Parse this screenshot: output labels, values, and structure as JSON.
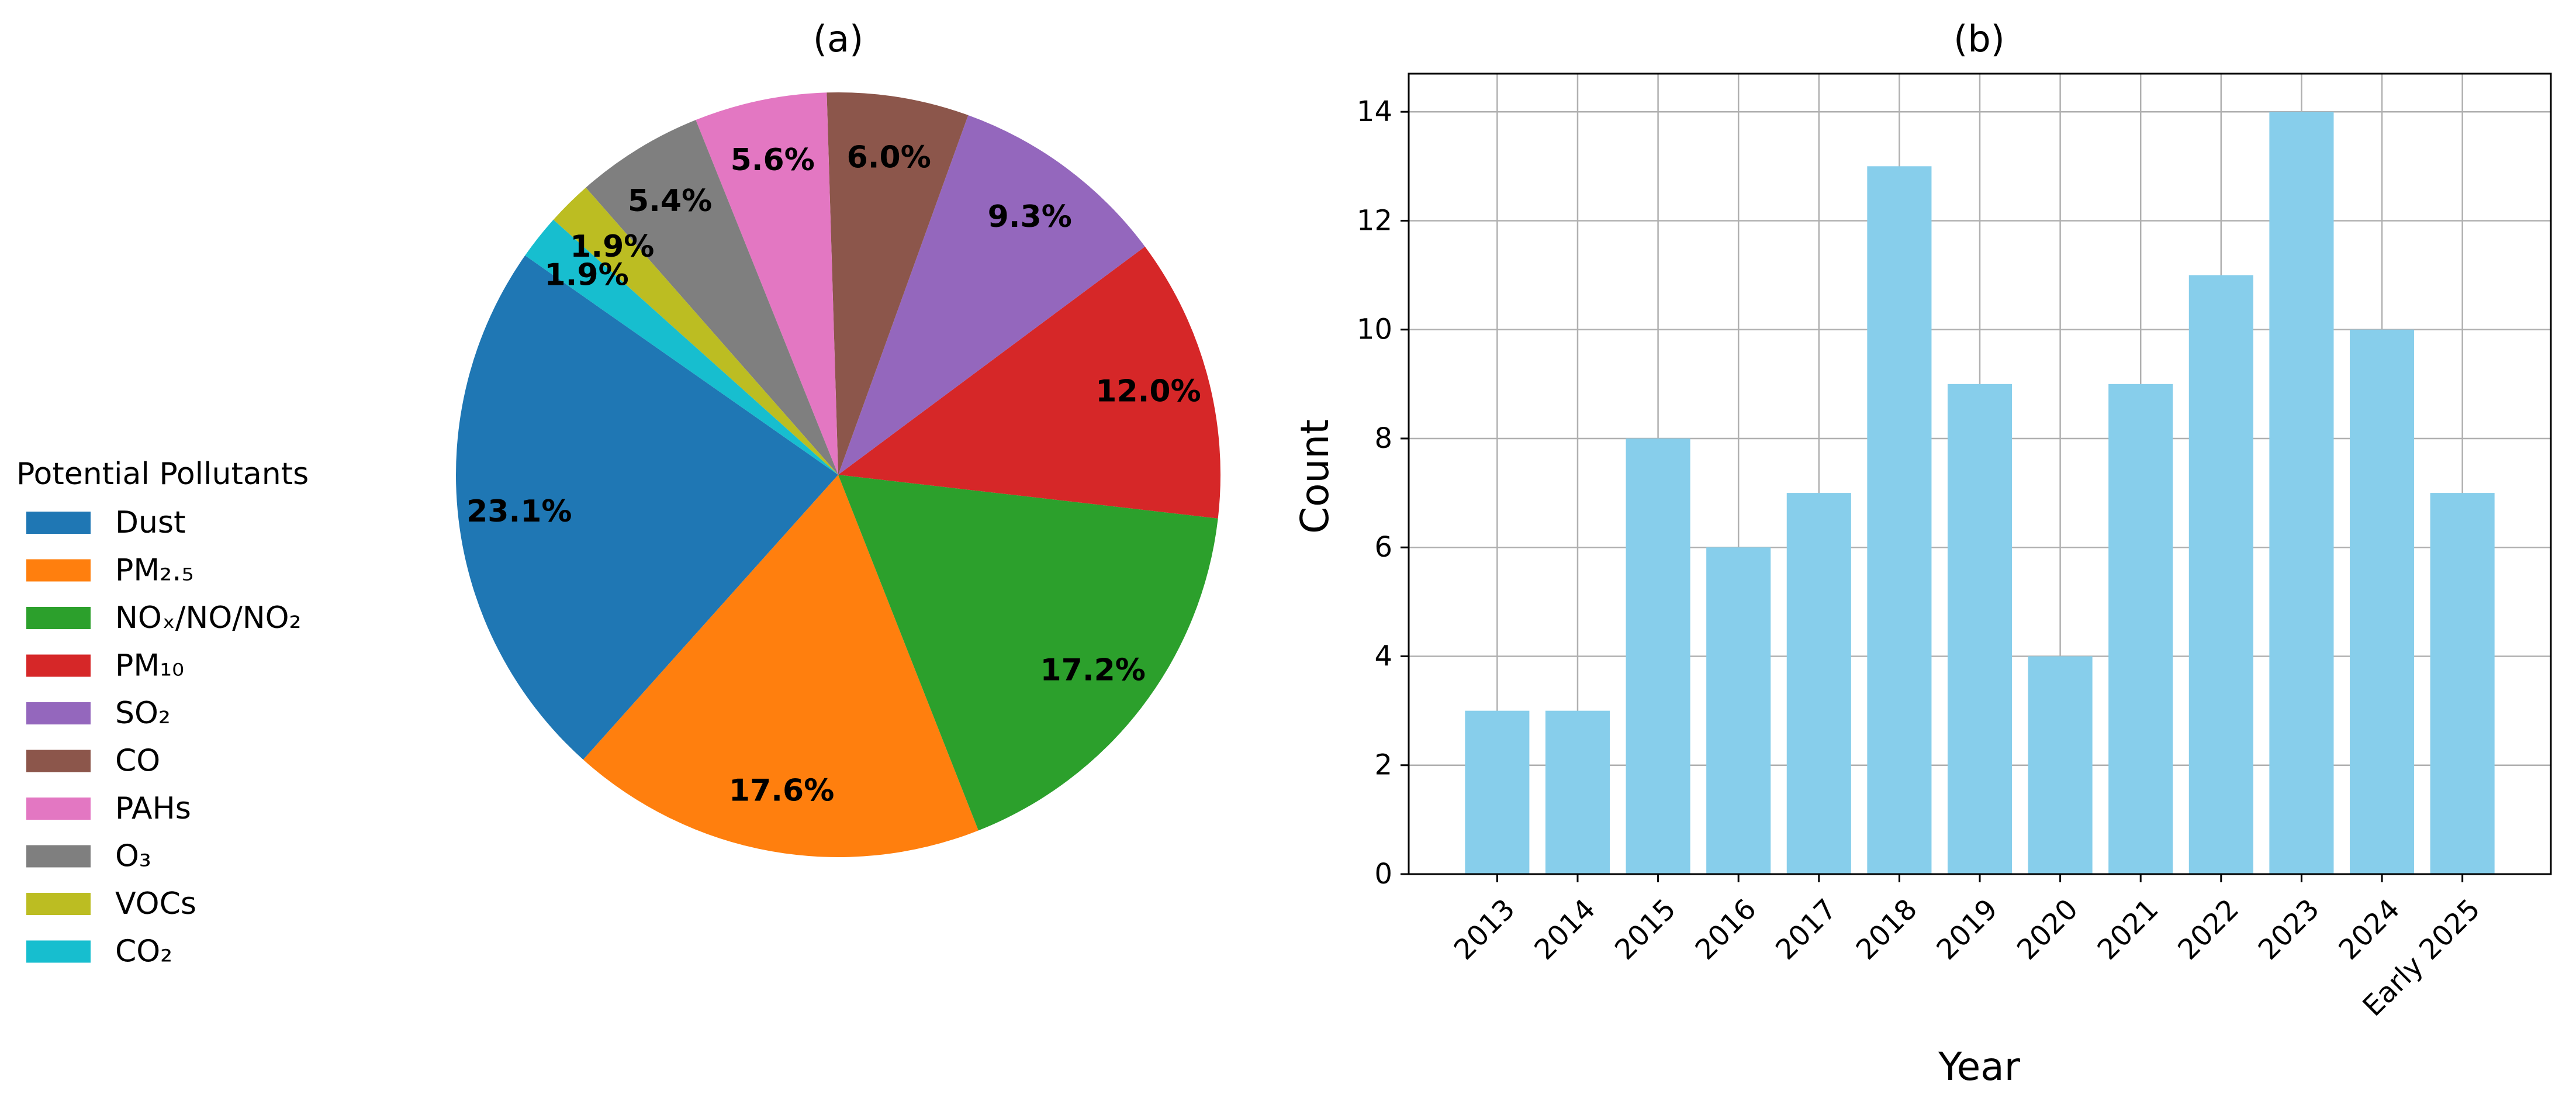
{
  "chart_data": [
    {
      "type": "pie",
      "title": "(a)",
      "legend_title": "Potential Pollutants",
      "legend_position": "left",
      "slices": [
        {
          "label": "Dust",
          "value": 23.1,
          "display": "23.1%",
          "color": "#1f77b4"
        },
        {
          "label": "PM₂.₅",
          "value": 17.6,
          "display": "17.6%",
          "color": "#ff7f0e"
        },
        {
          "label": "NOₓ/NO/NO₂",
          "value": 17.2,
          "display": "17.2%",
          "color": "#2ca02c"
        },
        {
          "label": "PM₁₀",
          "value": 12.0,
          "display": "12.0%",
          "color": "#d62728"
        },
        {
          "label": "SO₂",
          "value": 9.3,
          "display": "9.3%",
          "color": "#9467bd"
        },
        {
          "label": "CO",
          "value": 6.0,
          "display": "6.0%",
          "color": "#8c564b"
        },
        {
          "label": "PAHs",
          "value": 5.6,
          "display": "5.6%",
          "color": "#e377c2"
        },
        {
          "label": "O₃",
          "value": 5.4,
          "display": "5.4%",
          "color": "#7f7f7f"
        },
        {
          "label": "VOCs",
          "value": 1.9,
          "display": "1.9%",
          "color": "#bcbd22"
        },
        {
          "label": "CO₂",
          "value": 1.9,
          "display": "1.9%",
          "color": "#17becf"
        }
      ]
    },
    {
      "type": "bar",
      "title": "(b)",
      "xlabel": "Year",
      "ylabel": "Count",
      "categories": [
        "2013",
        "2014",
        "2015",
        "2016",
        "2017",
        "2018",
        "2019",
        "2020",
        "2021",
        "2022",
        "2023",
        "2024",
        "Early 2025"
      ],
      "values": [
        3,
        3,
        8,
        6,
        7,
        13,
        9,
        4,
        9,
        11,
        14,
        10,
        7
      ],
      "ylim": [
        0,
        14.7
      ],
      "yticks": [
        0,
        2,
        4,
        6,
        8,
        10,
        12,
        14
      ],
      "grid": true,
      "bar_color": "#87ceeb"
    }
  ]
}
